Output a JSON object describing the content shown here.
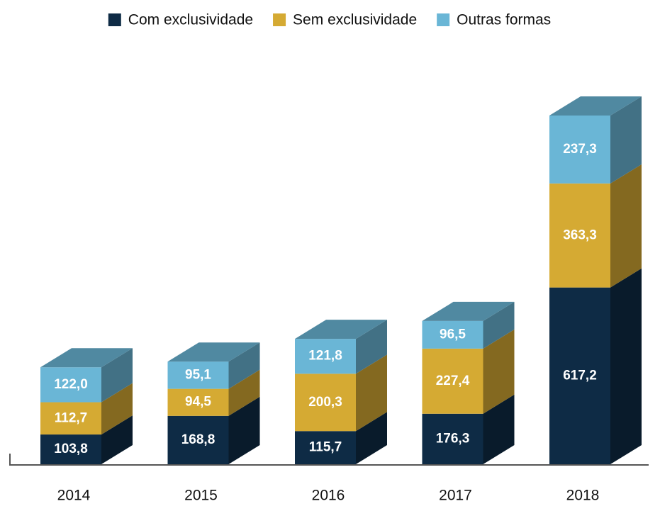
{
  "chart_data": {
    "type": "bar3d_stacked",
    "categories": [
      "2014",
      "2015",
      "2016",
      "2017",
      "2018"
    ],
    "series": [
      {
        "name": "Com exclusividade",
        "color": "#0e2b45",
        "values": [
          103.8,
          168.8,
          115.7,
          176.3,
          617.2
        ],
        "value_labels": [
          "103,8",
          "168,8",
          "115,7",
          "176,3",
          "617,2"
        ]
      },
      {
        "name": "Sem exclusividade",
        "color": "#d5aa33",
        "values": [
          112.7,
          94.5,
          200.3,
          227.4,
          363.3
        ],
        "value_labels": [
          "112,7",
          "94,5",
          "200,3",
          "227,4",
          "363,3"
        ]
      },
      {
        "name": "Outras formas",
        "color": "#6ab6d6",
        "values": [
          122.0,
          95.1,
          121.8,
          96.5,
          237.3
        ],
        "value_labels": [
          "122,0",
          "95,1",
          "121,8",
          "96,5",
          "237,3"
        ]
      }
    ]
  }
}
